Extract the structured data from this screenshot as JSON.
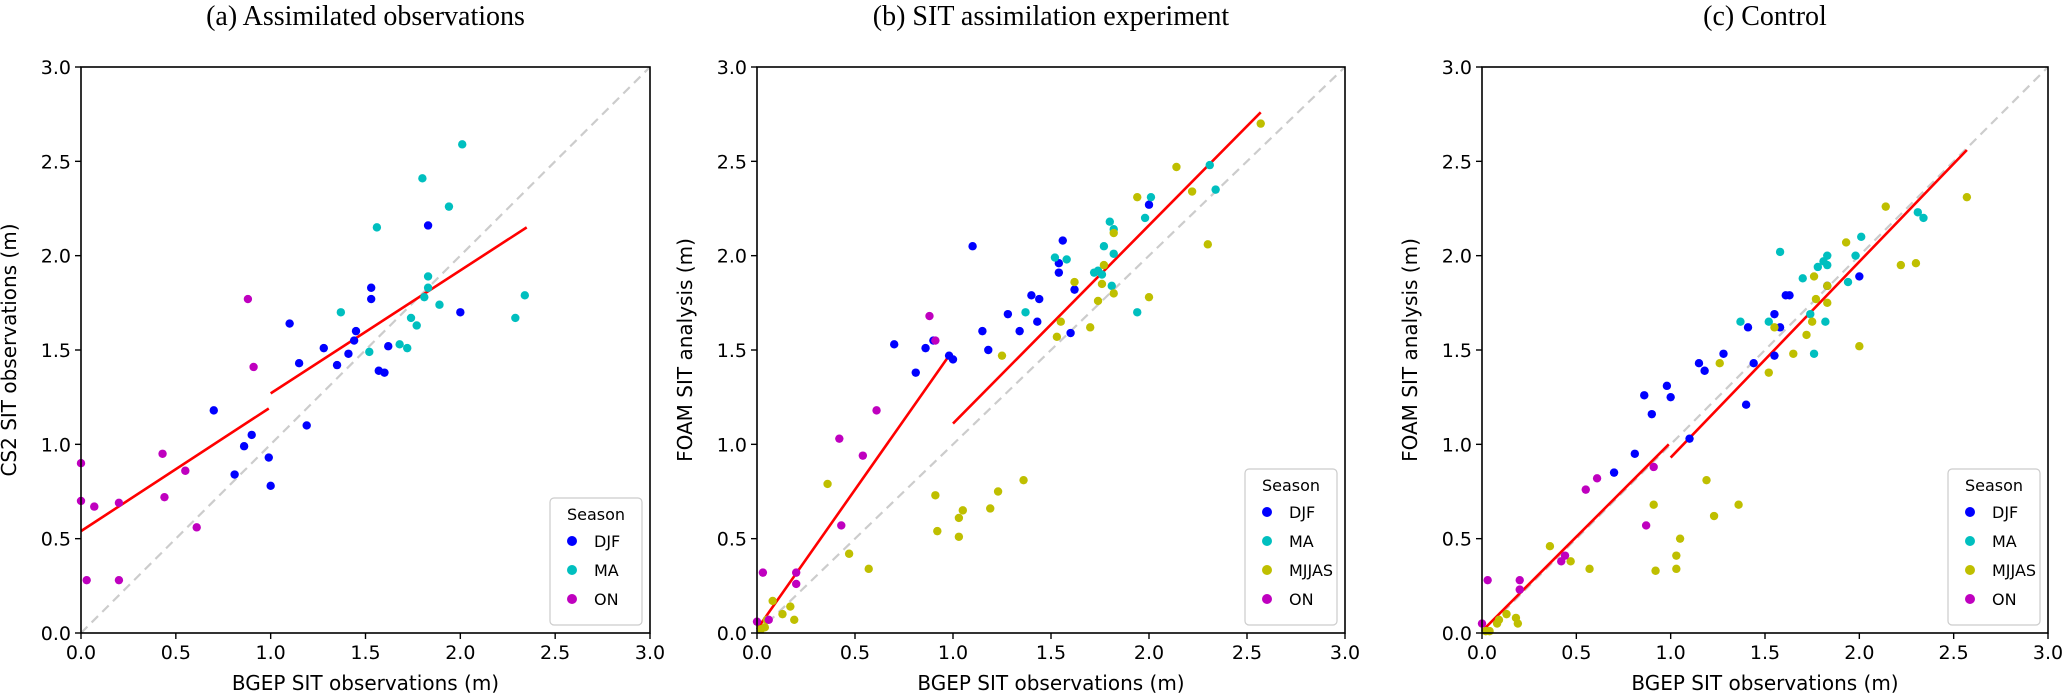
{
  "chart_data": [
    {
      "type": "scatter",
      "title": "(a)  Assimilated observations",
      "xlabel": "BGEP SIT observations (m)",
      "ylabel": "CS2 SIT observations (m)",
      "xlim": [
        0,
        3
      ],
      "ylim": [
        0,
        3
      ],
      "xticks": [
        "0.0",
        "0.5",
        "1.0",
        "1.5",
        "2.0",
        "2.5",
        "3.0"
      ],
      "yticks": [
        "0.0",
        "0.5",
        "1.0",
        "1.5",
        "2.0",
        "2.5",
        "3.0"
      ],
      "grid": false,
      "one_to_one_line": {
        "style": "dashed",
        "color": "#cccccc"
      },
      "legend": {
        "title": "Season",
        "placement": "bottom-right",
        "entries": [
          "DJF",
          "MA",
          "ON"
        ]
      },
      "series": [
        {
          "name": "DJF",
          "color": "#0000ff",
          "points": [
            [
              0.7,
              1.18
            ],
            [
              0.81,
              0.84
            ],
            [
              0.86,
              0.99
            ],
            [
              0.9,
              1.05
            ],
            [
              0.99,
              0.93
            ],
            [
              1.0,
              0.78
            ],
            [
              1.19,
              1.1
            ],
            [
              1.1,
              1.64
            ],
            [
              1.15,
              1.43
            ],
            [
              1.28,
              1.51
            ],
            [
              1.35,
              1.42
            ],
            [
              1.41,
              1.48
            ],
            [
              1.44,
              1.55
            ],
            [
              1.45,
              1.6
            ],
            [
              1.53,
              1.77
            ],
            [
              1.53,
              1.83
            ],
            [
              1.57,
              1.39
            ],
            [
              1.6,
              1.38
            ],
            [
              1.62,
              1.52
            ],
            [
              1.83,
              2.16
            ],
            [
              2.0,
              1.7
            ]
          ]
        },
        {
          "name": "MA",
          "color": "#00bfbf",
          "points": [
            [
              1.37,
              1.7
            ],
            [
              1.52,
              1.49
            ],
            [
              1.56,
              2.15
            ],
            [
              1.68,
              1.53
            ],
            [
              1.72,
              1.51
            ],
            [
              1.74,
              1.67
            ],
            [
              1.77,
              1.63
            ],
            [
              1.8,
              2.41
            ],
            [
              1.81,
              1.78
            ],
            [
              1.83,
              1.83
            ],
            [
              1.83,
              1.89
            ],
            [
              1.89,
              1.74
            ],
            [
              1.94,
              2.26
            ],
            [
              2.01,
              2.59
            ],
            [
              2.29,
              1.67
            ],
            [
              2.34,
              1.79
            ]
          ]
        },
        {
          "name": "ON",
          "color": "#bf00bf",
          "points": [
            [
              0.0,
              0.9
            ],
            [
              0.0,
              0.7
            ],
            [
              0.03,
              0.28
            ],
            [
              0.07,
              0.67
            ],
            [
              0.2,
              0.69
            ],
            [
              0.2,
              0.28
            ],
            [
              0.43,
              0.95
            ],
            [
              0.44,
              0.72
            ],
            [
              0.55,
              0.86
            ],
            [
              0.61,
              0.56
            ],
            [
              0.88,
              1.77
            ],
            [
              0.91,
              1.41
            ]
          ]
        }
      ],
      "fit_lines": [
        {
          "x": [
            0.0,
            0.99
          ],
          "y": [
            0.54,
            1.19
          ],
          "color": "#ff0000"
        },
        {
          "x": [
            1.0,
            2.35
          ],
          "y": [
            1.27,
            2.15
          ],
          "color": "#ff0000"
        }
      ]
    },
    {
      "type": "scatter",
      "title": "(b)  SIT assimilation experiment",
      "xlabel": "BGEP SIT observations (m)",
      "ylabel": "FOAM SIT analysis (m)",
      "xlim": [
        0,
        3
      ],
      "ylim": [
        0,
        3
      ],
      "xticks": [
        "0.0",
        "0.5",
        "1.0",
        "1.5",
        "2.0",
        "2.5",
        "3.0"
      ],
      "yticks": [
        "0.0",
        "0.5",
        "1.0",
        "1.5",
        "2.0",
        "2.5",
        "3.0"
      ],
      "grid": false,
      "one_to_one_line": {
        "style": "dashed",
        "color": "#cccccc"
      },
      "legend": {
        "title": "Season",
        "placement": "bottom-right",
        "entries": [
          "DJF",
          "MA",
          "MJJAS",
          "ON"
        ]
      },
      "series": [
        {
          "name": "DJF",
          "color": "#0000ff",
          "points": [
            [
              0.7,
              1.53
            ],
            [
              0.81,
              1.38
            ],
            [
              0.86,
              1.51
            ],
            [
              0.9,
              1.55
            ],
            [
              0.98,
              1.47
            ],
            [
              1.0,
              1.45
            ],
            [
              1.1,
              2.05
            ],
            [
              1.15,
              1.6
            ],
            [
              1.18,
              1.5
            ],
            [
              1.28,
              1.69
            ],
            [
              1.34,
              1.6
            ],
            [
              1.4,
              1.79
            ],
            [
              1.43,
              1.65
            ],
            [
              1.44,
              1.77
            ],
            [
              1.54,
              1.91
            ],
            [
              1.54,
              1.96
            ],
            [
              1.56,
              2.08
            ],
            [
              1.6,
              1.59
            ],
            [
              1.62,
              1.82
            ],
            [
              2.0,
              2.27
            ]
          ]
        },
        {
          "name": "MA",
          "color": "#00bfbf",
          "points": [
            [
              1.37,
              1.7
            ],
            [
              1.52,
              1.99
            ],
            [
              1.58,
              1.98
            ],
            [
              1.72,
              1.91
            ],
            [
              1.74,
              1.92
            ],
            [
              1.76,
              1.9
            ],
            [
              1.77,
              2.05
            ],
            [
              1.8,
              2.18
            ],
            [
              1.81,
              1.84
            ],
            [
              1.82,
              2.14
            ],
            [
              1.82,
              2.01
            ],
            [
              1.94,
              1.7
            ],
            [
              1.98,
              2.2
            ],
            [
              2.01,
              2.31
            ],
            [
              2.31,
              2.48
            ],
            [
              2.34,
              2.35
            ]
          ]
        },
        {
          "name": "MJJAS",
          "color": "#bfbf00",
          "points": [
            [
              0.02,
              0.02
            ],
            [
              0.04,
              0.03
            ],
            [
              0.05,
              0.07
            ],
            [
              0.08,
              0.17
            ],
            [
              0.13,
              0.1
            ],
            [
              0.17,
              0.14
            ],
            [
              0.19,
              0.07
            ],
            [
              0.36,
              0.79
            ],
            [
              0.47,
              0.42
            ],
            [
              0.57,
              0.34
            ],
            [
              0.91,
              0.73
            ],
            [
              0.92,
              0.54
            ],
            [
              1.03,
              0.61
            ],
            [
              1.03,
              0.51
            ],
            [
              1.05,
              0.65
            ],
            [
              1.19,
              0.66
            ],
            [
              1.23,
              0.75
            ],
            [
              1.36,
              0.81
            ],
            [
              1.25,
              1.47
            ],
            [
              1.53,
              1.57
            ],
            [
              1.55,
              1.65
            ],
            [
              1.62,
              1.86
            ],
            [
              1.7,
              1.62
            ],
            [
              1.74,
              1.76
            ],
            [
              1.76,
              1.85
            ],
            [
              1.77,
              1.95
            ],
            [
              1.82,
              1.8
            ],
            [
              1.82,
              2.12
            ],
            [
              1.94,
              2.31
            ],
            [
              2.0,
              1.78
            ],
            [
              2.14,
              2.47
            ],
            [
              2.22,
              2.34
            ],
            [
              2.3,
              2.06
            ],
            [
              2.57,
              2.7
            ]
          ]
        },
        {
          "name": "ON",
          "color": "#bf00bf",
          "points": [
            [
              0.0,
              0.06
            ],
            [
              0.03,
              0.32
            ],
            [
              0.06,
              0.07
            ],
            [
              0.2,
              0.32
            ],
            [
              0.2,
              0.26
            ],
            [
              0.42,
              1.03
            ],
            [
              0.43,
              0.57
            ],
            [
              0.54,
              0.94
            ],
            [
              0.61,
              1.18
            ],
            [
              0.88,
              1.68
            ],
            [
              0.91,
              1.55
            ]
          ]
        }
      ],
      "fit_lines": [
        {
          "x": [
            0.0,
            0.98
          ],
          "y": [
            0.02,
            1.47
          ],
          "color": "#ff0000"
        },
        {
          "x": [
            1.0,
            2.57
          ],
          "y": [
            1.11,
            2.76
          ],
          "color": "#ff0000"
        }
      ]
    },
    {
      "type": "scatter",
      "title": "(c)  Control",
      "xlabel": "BGEP SIT observations (m)",
      "ylabel": "FOAM SIT analysis (m)",
      "xlim": [
        0,
        3
      ],
      "ylim": [
        0,
        3
      ],
      "xticks": [
        "0.0",
        "0.5",
        "1.0",
        "1.5",
        "2.0",
        "2.5",
        "3.0"
      ],
      "yticks": [
        "0.0",
        "0.5",
        "1.0",
        "1.5",
        "2.0",
        "2.5",
        "3.0"
      ],
      "grid": false,
      "one_to_one_line": {
        "style": "dashed",
        "color": "#cccccc"
      },
      "legend": {
        "title": "Season",
        "placement": "bottom-right",
        "entries": [
          "DJF",
          "MA",
          "MJJAS",
          "ON"
        ]
      },
      "series": [
        {
          "name": "DJF",
          "color": "#0000ff",
          "points": [
            [
              0.7,
              0.85
            ],
            [
              0.81,
              0.95
            ],
            [
              0.86,
              1.26
            ],
            [
              0.9,
              1.16
            ],
            [
              0.98,
              1.31
            ],
            [
              1.0,
              1.25
            ],
            [
              1.1,
              1.03
            ],
            [
              1.15,
              1.43
            ],
            [
              1.18,
              1.39
            ],
            [
              1.28,
              1.48
            ],
            [
              1.4,
              1.21
            ],
            [
              1.41,
              1.62
            ],
            [
              1.44,
              1.43
            ],
            [
              1.55,
              1.47
            ],
            [
              1.55,
              1.69
            ],
            [
              1.58,
              1.62
            ],
            [
              1.61,
              1.79
            ],
            [
              1.63,
              1.79
            ],
            [
              1.83,
              1.84
            ],
            [
              2.0,
              1.89
            ]
          ]
        },
        {
          "name": "MA",
          "color": "#00bfbf",
          "points": [
            [
              1.37,
              1.65
            ],
            [
              1.52,
              1.65
            ],
            [
              1.58,
              2.02
            ],
            [
              1.7,
              1.88
            ],
            [
              1.74,
              1.69
            ],
            [
              1.76,
              1.48
            ],
            [
              1.78,
              1.94
            ],
            [
              1.81,
              1.97
            ],
            [
              1.83,
              2.0
            ],
            [
              1.83,
              1.95
            ],
            [
              1.82,
              1.65
            ],
            [
              1.94,
              1.86
            ],
            [
              1.98,
              2.0
            ],
            [
              2.01,
              2.1
            ],
            [
              2.31,
              2.23
            ],
            [
              2.34,
              2.2
            ]
          ]
        },
        {
          "name": "MJJAS",
          "color": "#bfbf00",
          "points": [
            [
              0.02,
              0.01
            ],
            [
              0.04,
              0.01
            ],
            [
              0.08,
              0.05
            ],
            [
              0.09,
              0.07
            ],
            [
              0.13,
              0.1
            ],
            [
              0.18,
              0.08
            ],
            [
              0.19,
              0.05
            ],
            [
              0.36,
              0.46
            ],
            [
              0.47,
              0.38
            ],
            [
              0.57,
              0.34
            ],
            [
              0.91,
              0.68
            ],
            [
              0.92,
              0.33
            ],
            [
              1.03,
              0.41
            ],
            [
              1.03,
              0.34
            ],
            [
              1.05,
              0.5
            ],
            [
              1.19,
              0.81
            ],
            [
              1.23,
              0.62
            ],
            [
              1.36,
              0.68
            ],
            [
              1.26,
              1.43
            ],
            [
              1.52,
              1.38
            ],
            [
              1.55,
              1.62
            ],
            [
              1.65,
              1.48
            ],
            [
              1.72,
              1.58
            ],
            [
              1.75,
              1.65
            ],
            [
              1.76,
              1.89
            ],
            [
              1.77,
              1.77
            ],
            [
              1.83,
              1.84
            ],
            [
              1.83,
              1.75
            ],
            [
              1.93,
              2.07
            ],
            [
              2.0,
              1.52
            ],
            [
              2.14,
              2.26
            ],
            [
              2.22,
              1.95
            ],
            [
              2.3,
              1.96
            ],
            [
              2.57,
              2.31
            ]
          ]
        },
        {
          "name": "ON",
          "color": "#bf00bf",
          "points": [
            [
              0.0,
              0.05
            ],
            [
              0.03,
              0.28
            ],
            [
              0.2,
              0.28
            ],
            [
              0.2,
              0.23
            ],
            [
              0.42,
              0.38
            ],
            [
              0.44,
              0.41
            ],
            [
              0.55,
              0.76
            ],
            [
              0.61,
              0.82
            ],
            [
              0.87,
              0.57
            ],
            [
              0.91,
              0.88
            ]
          ]
        }
      ],
      "fit_lines": [
        {
          "x": [
            0.0,
            0.99
          ],
          "y": [
            0.01,
            1.0
          ],
          "color": "#ff0000"
        },
        {
          "x": [
            1.0,
            2.57
          ],
          "y": [
            0.93,
            2.56
          ],
          "color": "#ff0000"
        }
      ]
    }
  ]
}
